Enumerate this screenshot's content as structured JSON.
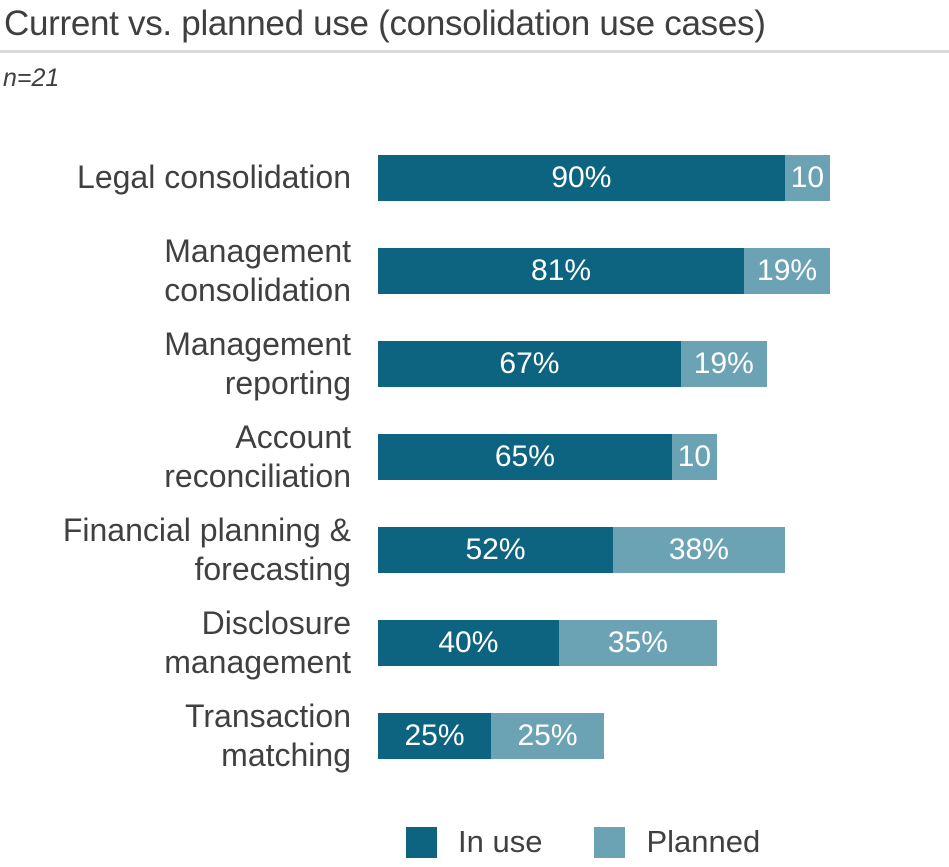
{
  "header": {
    "title": "Current vs. planned use (consolidation use cases)",
    "sample_note": "n=21"
  },
  "chart_data": {
    "type": "bar",
    "orientation": "horizontal",
    "stacked": true,
    "title": "Current vs. planned use (consolidation use cases)",
    "subtitle": "n=21",
    "categories": [
      "Legal consolidation",
      "Management consolidation",
      "Management reporting",
      "Account reconciliation",
      "Financial planning & forecasting",
      "Disclosure management",
      "Transaction matching"
    ],
    "category_wrap": [
      [
        "Legal consolidation"
      ],
      [
        "Management",
        "consolidation"
      ],
      [
        "Management",
        "reporting"
      ],
      [
        "Account",
        "reconciliation"
      ],
      [
        "Financial planning &",
        "forecasting"
      ],
      [
        "Disclosure",
        "management"
      ],
      [
        "Transaction",
        "matching"
      ]
    ],
    "series": [
      {
        "name": "In use",
        "color": "#0d6480",
        "values": [
          90,
          81,
          67,
          65,
          52,
          40,
          25
        ],
        "labels": [
          "90%",
          "81%",
          "67%",
          "65%",
          "52%",
          "40%",
          "25%"
        ]
      },
      {
        "name": "Planned",
        "color": "#6ba3b5",
        "values": [
          10,
          19,
          19,
          10,
          38,
          35,
          25
        ],
        "labels": [
          "10",
          "19%",
          "19%",
          "10",
          "38%",
          "35%",
          "25%"
        ]
      }
    ],
    "xlim": [
      0,
      100
    ],
    "grid": false,
    "legend_position": "bottom",
    "value_label_color": "#ffffff"
  },
  "legend": {
    "items": [
      {
        "label": "In use",
        "color": "#0d6480"
      },
      {
        "label": "Planned",
        "color": "#6ba3b5"
      }
    ]
  },
  "style": {
    "divider_color": "#d9d9d9",
    "text_color": "#404040",
    "title_color": "#3f3f3f"
  }
}
